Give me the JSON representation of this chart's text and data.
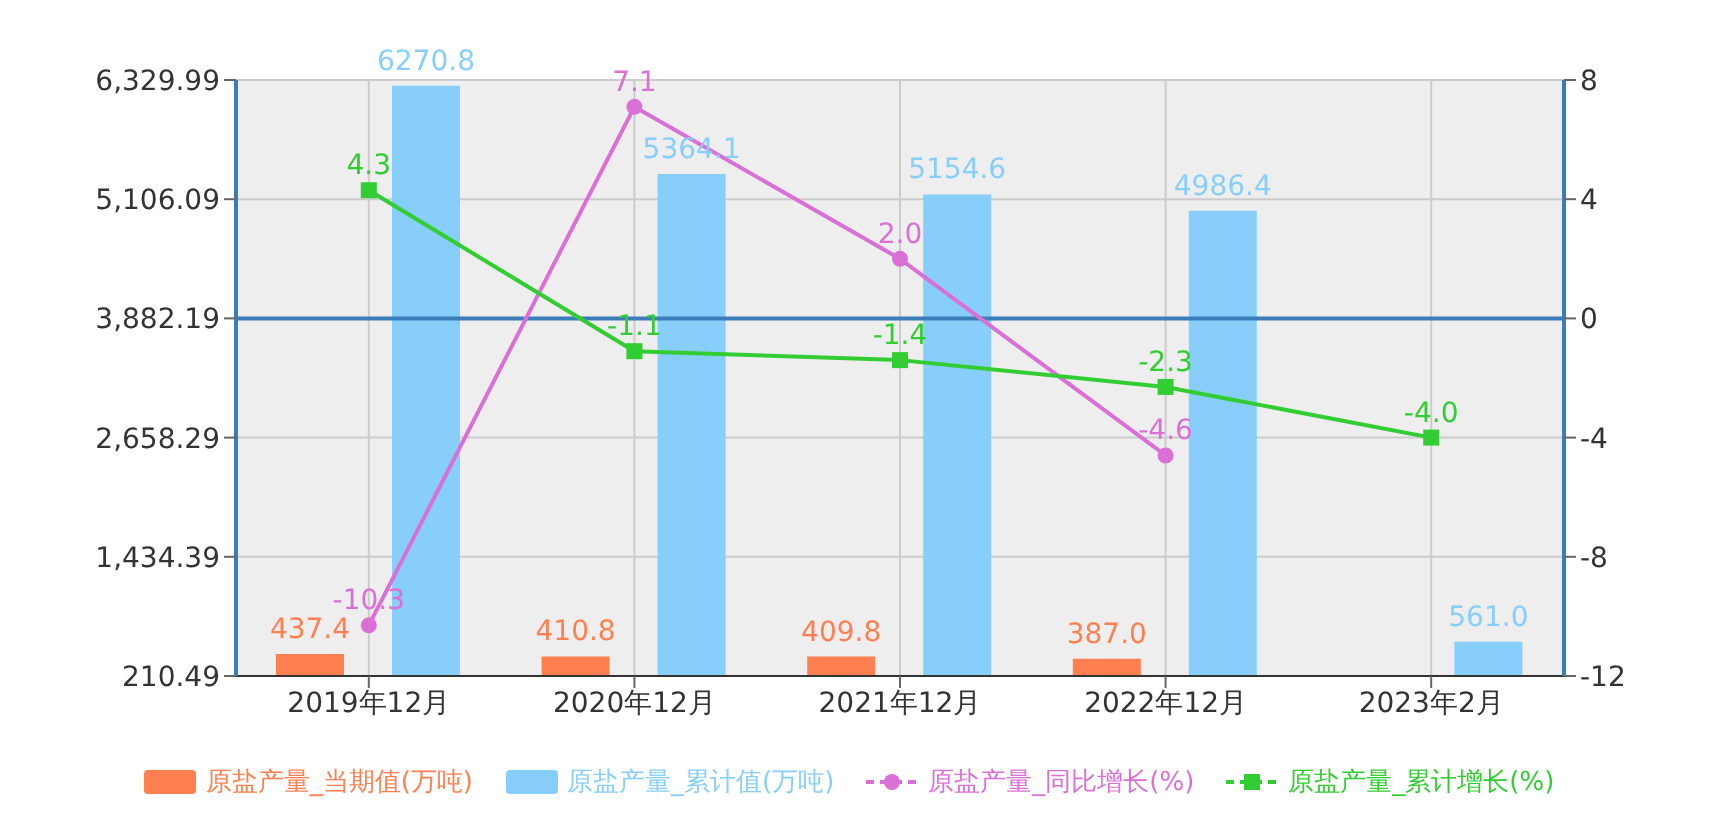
{
  "chart_data": {
    "type": "bar",
    "categories": [
      "2019年12月",
      "2020年12月",
      "2021年12月",
      "2022年12月",
      "2023年2月"
    ],
    "series": [
      {
        "name": "原盐产量_当期值(万吨)",
        "color": "#ff7f50",
        "values": [
          437.4,
          410.8,
          409.8,
          387.0,
          null
        ],
        "value_labels": [
          "437.4",
          "410.8",
          "409.8",
          "387.0",
          null
        ]
      },
      {
        "name": "原盐产量_累计值(万吨)",
        "color": "#87cefa",
        "values": [
          6270.8,
          5364.1,
          5154.6,
          4986.4,
          561.0
        ],
        "value_labels": [
          "6270.8",
          "5364.1",
          "5154.6",
          "4986.4",
          "561.0"
        ]
      },
      {
        "name": "原盐产量_同比增长(%)",
        "type": "line",
        "axis": "y2",
        "marker": "circle",
        "color": "#da70d6",
        "values": [
          -10.3,
          7.1,
          2.0,
          -4.6,
          null
        ],
        "value_labels": [
          "-10.3",
          "7.1",
          "2.0",
          "-4.6",
          null
        ]
      },
      {
        "name": "原盐产量_累计增长(%)",
        "type": "line",
        "axis": "y2",
        "marker": "square",
        "color": "#32cd32",
        "values": [
          4.3,
          -1.1,
          -1.4,
          -2.3,
          -4.0
        ],
        "value_labels": [
          "4.3",
          "-1.1",
          "-1.4",
          "-2.3",
          "-4.0"
        ]
      }
    ],
    "ylim": [
      210.49,
      6329.99
    ],
    "yticks": [
      {
        "value": 210.49,
        "label": "210.49"
      },
      {
        "value": 1434.39,
        "label": "1,434.39"
      },
      {
        "value": 2658.29,
        "label": "2,658.29"
      },
      {
        "value": 3882.19,
        "label": "3,882.19"
      },
      {
        "value": 5106.09,
        "label": "5,106.09"
      },
      {
        "value": 6329.99,
        "label": "6,329.99"
      }
    ],
    "y2lim": [
      -12,
      8
    ],
    "y2ticks": [
      -12,
      -8,
      -4,
      0,
      4,
      8
    ],
    "ref_lines": [
      {
        "axis": "y2",
        "value": 0,
        "color": "#3a7db8"
      }
    ],
    "grid": true,
    "legend": "bottom"
  }
}
